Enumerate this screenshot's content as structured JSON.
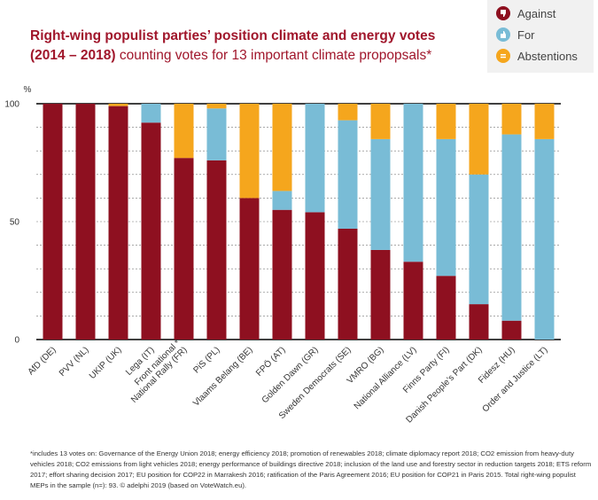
{
  "title": {
    "line1": "Right-wing populist parties’ position climate and energy votes",
    "years": "(2014 – 2018)",
    "rest": "counting votes for 13 important climate propopsals*"
  },
  "legend": {
    "items": [
      {
        "label": "Against",
        "icon": "thumbs-down-icon",
        "color": "#8e1020"
      },
      {
        "label": "For",
        "icon": "thumbs-up-icon",
        "color": "#79bcd6"
      },
      {
        "label": "Abstentions",
        "icon": "equals-icon",
        "color": "#f5a61d"
      }
    ]
  },
  "colors": {
    "against": "#8e1020",
    "for": "#79bcd6",
    "abstentions": "#f5a61d",
    "grid": "#777777"
  },
  "chart_data": {
    "type": "bar",
    "stacked": true,
    "ylabel": "%",
    "ylim": [
      0,
      100
    ],
    "yticks": [
      0,
      50,
      100
    ],
    "grid": true,
    "legend_position": "top-right",
    "categories": [
      "AfD (DE)",
      "PVV (NL)",
      "UKIP (UK)",
      "Lega (IT)",
      "Front national / National Rally (FR)",
      "PiS (PL)",
      "Vlaams Belang (BE)",
      "FPÖ (AT)",
      "Golden Dawn (GR)",
      "Sweden Democrats (SE)",
      "VMRO (BG)",
      "National Alliance (LV)",
      "Finns Party (FI)",
      "Danish People’s Part (DK)",
      "Fidesz (HU)",
      "Order and Justice (LT)"
    ],
    "tick_labels": [
      [
        "AfD (DE)"
      ],
      [
        "PVV (NL)"
      ],
      [
        "UKIP (UK)"
      ],
      [
        "Lega (IT)"
      ],
      [
        "Front national *",
        "National Rally (FR)"
      ],
      [
        "PiS (PL)"
      ],
      [
        "Vlaams Belang (BE)"
      ],
      [
        "FPÖ (AT)"
      ],
      [
        "Golden Dawn (GR)"
      ],
      [
        "Sweden Democrats (SE)"
      ],
      [
        "VMRO (BG)"
      ],
      [
        "National Alliance (LV)"
      ],
      [
        "Finns Party (FI)"
      ],
      [
        "Danish People’s Part (DK)"
      ],
      [
        "Fidesz (HU)"
      ],
      [
        "Order and Justice (LT)"
      ]
    ],
    "series": [
      {
        "name": "Against",
        "values": [
          100,
          100,
          99,
          92,
          77,
          76,
          60,
          55,
          54,
          47,
          38,
          33,
          27,
          15,
          8,
          0
        ]
      },
      {
        "name": "For",
        "values": [
          0,
          0,
          0,
          8,
          0,
          22,
          0,
          8,
          46,
          46,
          47,
          67,
          58,
          55,
          79,
          85
        ]
      },
      {
        "name": "Abstentions",
        "values": [
          0,
          0,
          1,
          0,
          23,
          2,
          40,
          37,
          0,
          7,
          15,
          0,
          15,
          30,
          13,
          15
        ]
      }
    ]
  },
  "footnote": "*includes 13 votes on: Governance of the Energy Union 2018; energy efficiency 2018; promotion of renewables 2018; climate diplomacy report 2018; CO2 emission from heavy-duty vehicles 2018; CO2 emissions from light vehicles 2018; energy performance of buildings directive 2018; inclusion of the land use and forestry sector in reduction targets 2018; ETS reform 2017; effort sharing decision 2017; EU position for COP22 in Marrakesh 2016; ratification of the Paris Agreement 2016; EU position for COP21 in Paris 2015. Total right-wing populist MEPs in the sample (n=): 93. © adelphi 2019 (based on VoteWatch.eu)."
}
